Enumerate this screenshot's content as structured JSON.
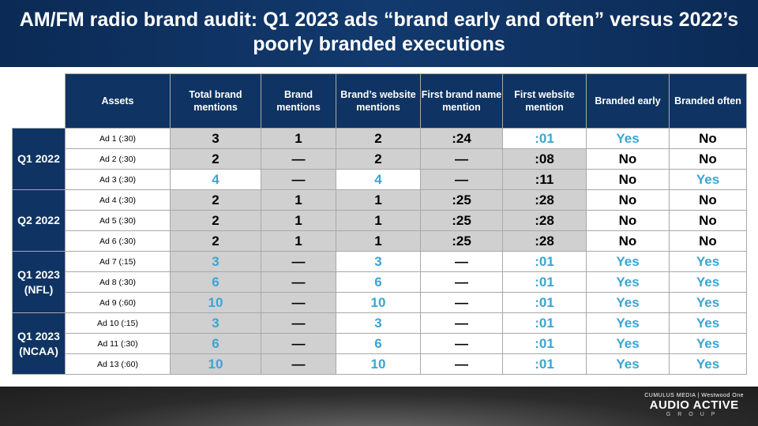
{
  "title": "AM/FM radio brand audit: Q1 2023 ads “brand early and often” versus 2022’s poorly branded executions",
  "headers": [
    "Assets",
    "Total brand mentions",
    "Brand mentions",
    "Brand’s website mentions",
    "First brand name mention",
    "First website mention",
    "Branded early",
    "Branded often"
  ],
  "groups": [
    {
      "label": "Q1 2022",
      "rows": [
        {
          "asset": "Ad 1 (:30)",
          "cells": [
            "3",
            "1",
            "2",
            ":24",
            ":01",
            "Yes",
            "No"
          ],
          "highlight": [
            4,
            5
          ]
        },
        {
          "asset": "Ad 2 (:30)",
          "cells": [
            "2",
            "—",
            "2",
            "—",
            ":08",
            "No",
            "No"
          ],
          "highlight": []
        },
        {
          "asset": "Ad 3 (:30)",
          "cells": [
            "4",
            "—",
            "4",
            "—",
            ":11",
            "No",
            "Yes"
          ],
          "highlight": [
            0,
            2,
            6
          ]
        }
      ]
    },
    {
      "label": "Q2 2022",
      "rows": [
        {
          "asset": "Ad 4 (:30)",
          "cells": [
            "2",
            "1",
            "1",
            ":25",
            ":28",
            "No",
            "No"
          ],
          "highlight": []
        },
        {
          "asset": "Ad 5 (:30)",
          "cells": [
            "2",
            "1",
            "1",
            ":25",
            ":28",
            "No",
            "No"
          ],
          "highlight": []
        },
        {
          "asset": "Ad 6 (:30)",
          "cells": [
            "2",
            "1",
            "1",
            ":25",
            ":28",
            "No",
            "No"
          ],
          "highlight": []
        }
      ]
    },
    {
      "label": "Q1 2023 (NFL)",
      "rows": [
        {
          "asset": "Ad 7 (:15)",
          "cells": [
            "3",
            "—",
            "3",
            "—",
            ":01",
            "Yes",
            "Yes"
          ],
          "highlight": [
            0,
            2,
            4,
            5,
            6
          ]
        },
        {
          "asset": "Ad 8 (:30)",
          "cells": [
            "6",
            "—",
            "6",
            "—",
            ":01",
            "Yes",
            "Yes"
          ],
          "highlight": [
            0,
            2,
            4,
            5,
            6
          ]
        },
        {
          "asset": "Ad 9 (:60)",
          "cells": [
            "10",
            "—",
            "10",
            "—",
            ":01",
            "Yes",
            "Yes"
          ],
          "highlight": [
            0,
            2,
            4,
            5,
            6
          ]
        }
      ]
    },
    {
      "label": "Q1 2023 (NCAA)",
      "rows": [
        {
          "asset": "Ad 10 (:15)",
          "cells": [
            "3",
            "—",
            "3",
            "—",
            ":01",
            "Yes",
            "Yes"
          ],
          "highlight": [
            0,
            2,
            4,
            5,
            6
          ]
        },
        {
          "asset": "Ad 11 (:30)",
          "cells": [
            "6",
            "—",
            "6",
            "—",
            ":01",
            "Yes",
            "Yes"
          ],
          "highlight": [
            0,
            2,
            4,
            5,
            6
          ]
        },
        {
          "asset": "Ad 13 (:60)",
          "cells": [
            "10",
            "—",
            "10",
            "—",
            ":01",
            "Yes",
            "Yes"
          ],
          "highlight": [
            0,
            2,
            4,
            5,
            6
          ]
        }
      ]
    }
  ],
  "logo": {
    "top": "CUMULUS MEDIA | Westwood One",
    "main": "AUDIO ACTIVE",
    "sub": "GROUP"
  },
  "colors": {
    "header": "#0f3463",
    "highlight": "#3aa5d2",
    "shade": "#d0d0d0"
  }
}
